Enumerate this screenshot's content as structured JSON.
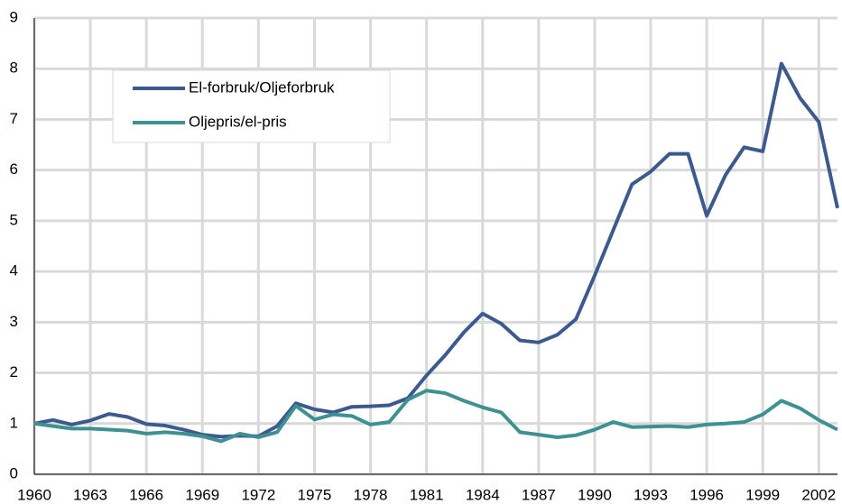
{
  "chart_data": {
    "type": "line",
    "x": [
      1960,
      1961,
      1962,
      1963,
      1964,
      1965,
      1966,
      1967,
      1968,
      1969,
      1970,
      1971,
      1972,
      1973,
      1974,
      1975,
      1976,
      1977,
      1978,
      1979,
      1980,
      1981,
      1982,
      1983,
      1984,
      1985,
      1986,
      1987,
      1988,
      1989,
      1990,
      1991,
      1992,
      1993,
      1994,
      1995,
      1996,
      1997,
      1998,
      1999,
      2000,
      2001,
      2002,
      2003
    ],
    "series": [
      {
        "name": "El-forbruk/Oljeforbruk",
        "color": "#3d5a8f",
        "values": [
          1.0,
          1.07,
          0.98,
          1.06,
          1.19,
          1.13,
          0.99,
          0.96,
          0.88,
          0.78,
          0.74,
          0.76,
          0.75,
          0.95,
          1.4,
          1.28,
          1.22,
          1.33,
          1.34,
          1.36,
          1.5,
          1.95,
          2.35,
          2.8,
          3.17,
          2.97,
          2.64,
          2.6,
          2.75,
          3.06,
          3.92,
          4.82,
          5.72,
          5.97,
          6.32,
          6.32,
          5.1,
          5.9,
          6.45,
          6.37,
          8.1,
          7.42,
          6.95,
          5.25
        ]
      },
      {
        "name": "Oljepris/el-pris",
        "color": "#3f9191",
        "values": [
          1.0,
          0.95,
          0.9,
          0.9,
          0.88,
          0.86,
          0.8,
          0.83,
          0.8,
          0.75,
          0.65,
          0.8,
          0.73,
          0.83,
          1.35,
          1.08,
          1.18,
          1.15,
          0.98,
          1.03,
          1.47,
          1.65,
          1.6,
          1.45,
          1.32,
          1.22,
          0.83,
          0.78,
          0.73,
          0.77,
          0.88,
          1.03,
          0.93,
          0.94,
          0.95,
          0.93,
          0.98,
          1.0,
          1.03,
          1.18,
          1.45,
          1.3,
          1.07,
          0.88
        ]
      }
    ],
    "xlim": [
      1960,
      2003
    ],
    "xticks": [
      1960,
      1963,
      1966,
      1969,
      1972,
      1975,
      1978,
      1981,
      1984,
      1987,
      1990,
      1993,
      1996,
      1999,
      2002
    ],
    "ylim": [
      0,
      9
    ],
    "yticks": [
      0,
      1,
      2,
      3,
      4,
      5,
      6,
      7,
      8,
      9
    ],
    "grid": true,
    "legend": "upper left"
  }
}
